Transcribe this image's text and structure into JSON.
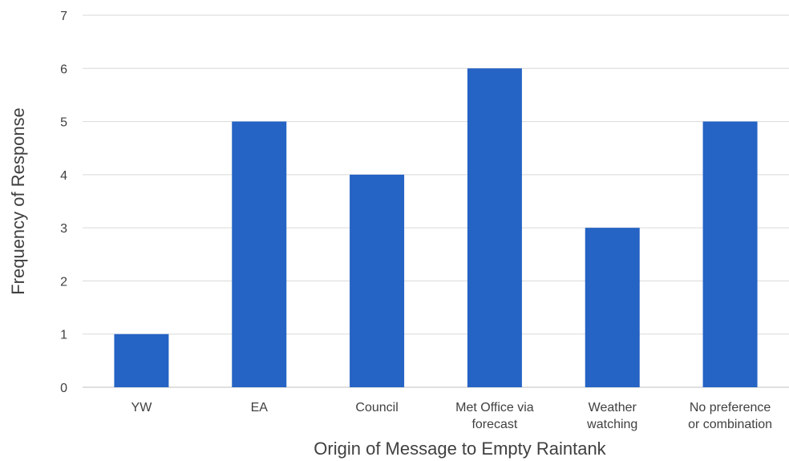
{
  "chart_data": {
    "type": "bar",
    "title": "",
    "xlabel": "Origin of Message to Empty Raintank",
    "ylabel": "Frequency of Response",
    "categories": [
      "YW",
      "EA",
      "Council",
      "Met Office via forecast",
      "Weather watching",
      "No preference or combination"
    ],
    "category_label_lines": [
      [
        "YW"
      ],
      [
        "EA"
      ],
      [
        "Council"
      ],
      [
        "Met Office via",
        "forecast"
      ],
      [
        "Weather",
        "watching"
      ],
      [
        "No preference",
        "or combination"
      ]
    ],
    "values": [
      1,
      5,
      4,
      6,
      3,
      5
    ],
    "ylim": [
      0,
      7
    ],
    "yticks": [
      0,
      1,
      2,
      3,
      4,
      5,
      6,
      7
    ],
    "grid": true,
    "legend": "none",
    "bar_color": "#2563c4"
  }
}
